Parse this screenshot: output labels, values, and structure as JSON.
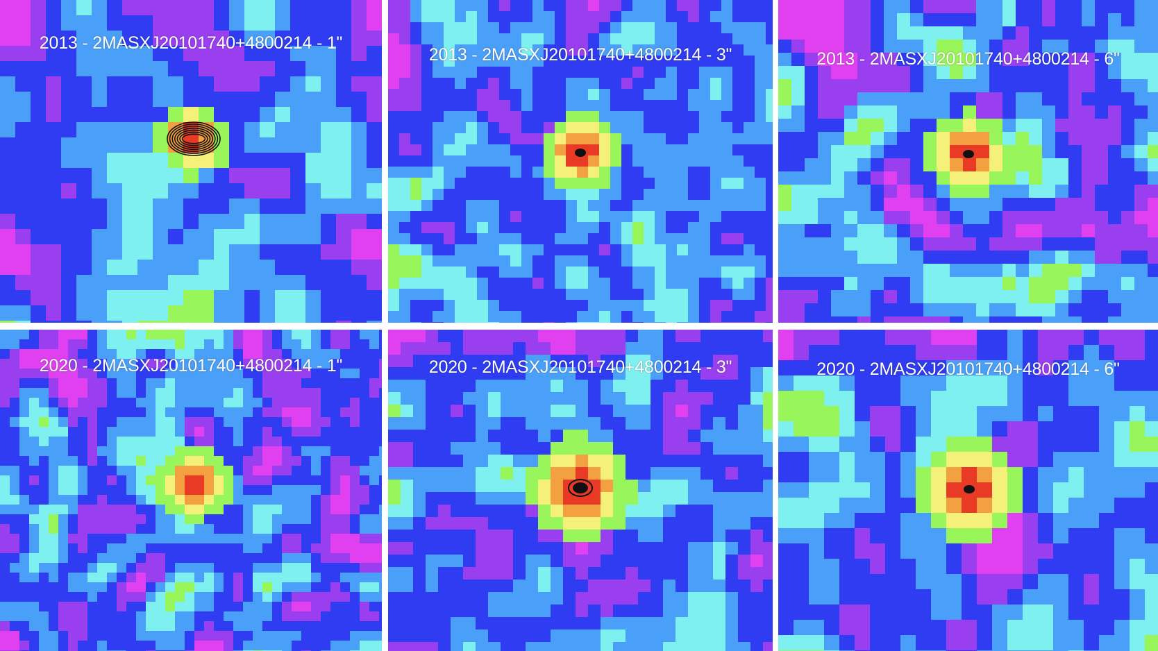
{
  "panels": [
    {
      "label": "2013 - 2MASXJ20101740+4800214 - 1\""
    },
    {
      "label": "2013 - 2MASXJ20101740+4800214 - 3\""
    },
    {
      "label": "2013 - 2MASXJ20101740+4800214 - 6\""
    },
    {
      "label": "2020 - 2MASXJ20101740+4800214 - 1\""
    },
    {
      "label": "2020 - 2MASXJ20101740+4800214 - 3\""
    },
    {
      "label": "2020 - 2MASXJ20101740+4800214 - 6\""
    }
  ],
  "colors": {
    "magenta": "#e040f0",
    "purple": "#9a3ff0",
    "blue": "#2f3cf2",
    "light_blue": "#4aa0f8",
    "cyan": "#7ff0f0",
    "green": "#98f55a",
    "yellow": "#f4f07a",
    "orange": "#f2a040",
    "red": "#e83a24",
    "contour": "#111111"
  }
}
